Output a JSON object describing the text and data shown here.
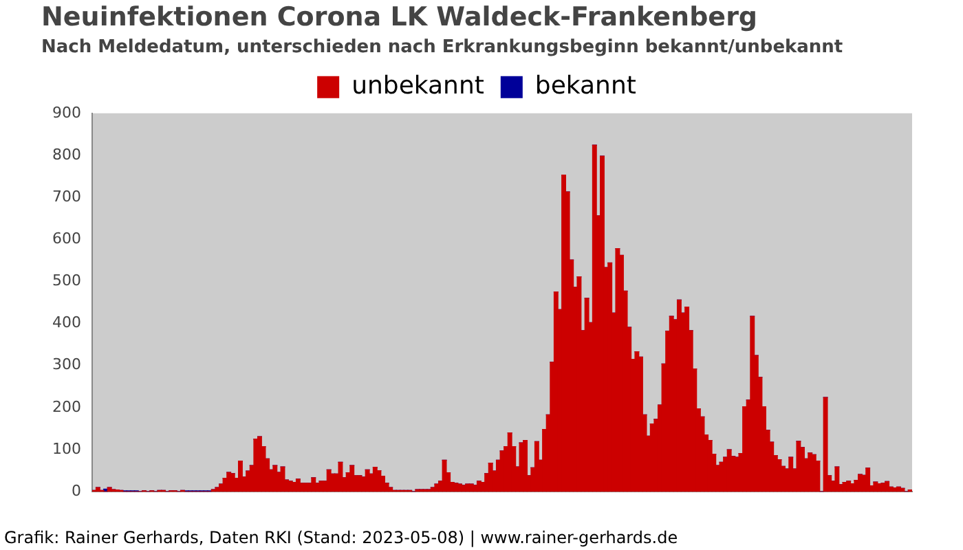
{
  "chart_data": {
    "type": "bar",
    "title": "Neuinfektionen Corona LK Waldeck-Frankenberg",
    "subtitle": "Nach Meldedatum, unterschieden nach Erkrankungsbeginn bekannt/unbekannt",
    "annotations": [
      "Grafik: Rainer Gerhards, Daten RKI (Stand: 2023-05-08) | www.rainer-gerhards.de"
    ],
    "categories": [
      null,
      null,
      null,
      null,
      null,
      null,
      null,
      null,
      null,
      null,
      null,
      null,
      null,
      null,
      null,
      null,
      null,
      null,
      null,
      null,
      null,
      null,
      null,
      null,
      null,
      null,
      null,
      null,
      null,
      null,
      null,
      null,
      null,
      null,
      null,
      null,
      null,
      null,
      null,
      null,
      null,
      null,
      null,
      null,
      null,
      null,
      null,
      null,
      null,
      null,
      null,
      null,
      null,
      null,
      null,
      null,
      null,
      null,
      null,
      null,
      null,
      null,
      null,
      null,
      null,
      null,
      null,
      null,
      null,
      null,
      null,
      null,
      null,
      null,
      null,
      null,
      null,
      null,
      null,
      null,
      null,
      null,
      null,
      null,
      null,
      null,
      null,
      null,
      null,
      null,
      null,
      null,
      null,
      null,
      null,
      null,
      null,
      null,
      null,
      null,
      null,
      null,
      null,
      null,
      null,
      null,
      null,
      null,
      null,
      null,
      null,
      null,
      null,
      null,
      null,
      null,
      null,
      null,
      null,
      null,
      null,
      null,
      null,
      null,
      null,
      null,
      null,
      null,
      null,
      null,
      null,
      null,
      null,
      null,
      null,
      null,
      null,
      null,
      null,
      null,
      null,
      null,
      null,
      null,
      null,
      null,
      null,
      null,
      null,
      null,
      null,
      null,
      null,
      null,
      null,
      null,
      null,
      null,
      null,
      null,
      null,
      null,
      null,
      null,
      null,
      null,
      null,
      null,
      null,
      null,
      null,
      null,
      null,
      null,
      null,
      null,
      null,
      null,
      null,
      null,
      null,
      null,
      null,
      null,
      null,
      null,
      null,
      null,
      null,
      null,
      null,
      null,
      null,
      null,
      null,
      null,
      null,
      null,
      null,
      null,
      null,
      null,
      null,
      null,
      null,
      null,
      null,
      null,
      null,
      null,
      null,
      null,
      null
    ],
    "series": [
      {
        "name": "unbekannt",
        "color": "#cc0000",
        "values": [
          3,
          10,
          3,
          0,
          10,
          5,
          4,
          3,
          0,
          0,
          0,
          0,
          0,
          2,
          0,
          2,
          0,
          3,
          3,
          0,
          2,
          2,
          0,
          3,
          0,
          0,
          0,
          0,
          0,
          0,
          0,
          5,
          10,
          18,
          32,
          46,
          43,
          32,
          73,
          35,
          49,
          62,
          125,
          131,
          107,
          78,
          52,
          62,
          46,
          59,
          28,
          25,
          22,
          30,
          20,
          20,
          20,
          33,
          20,
          25,
          25,
          52,
          42,
          42,
          70,
          33,
          45,
          62,
          38,
          38,
          35,
          52,
          42,
          58,
          50,
          37,
          20,
          10,
          3,
          3,
          3,
          3,
          3,
          0,
          5,
          5,
          5,
          5,
          10,
          18,
          25,
          75,
          45,
          22,
          20,
          18,
          15,
          18,
          18,
          15,
          25,
          22,
          43,
          68,
          49,
          75,
          97,
          107,
          140,
          107,
          59,
          116,
          122,
          38,
          57,
          119,
          75,
          148,
          183,
          308,
          475,
          433,
          753,
          713,
          551,
          486,
          511,
          383,
          460,
          402,
          824,
          656,
          798,
          533,
          544,
          425,
          578,
          562,
          477,
          391,
          315,
          333,
          320,
          183,
          132,
          161,
          172,
          206,
          304,
          382,
          417,
          409,
          456,
          425,
          439,
          383,
          292,
          197,
          178,
          135,
          122,
          89,
          62,
          70,
          82,
          100,
          84,
          82,
          91,
          202,
          218,
          417,
          324,
          272,
          202,
          146,
          118,
          86,
          76,
          60,
          54,
          82,
          54,
          120,
          105,
          78,
          92,
          88,
          73,
          0,
          224,
          38,
          25,
          59,
          17,
          22,
          25,
          19,
          27,
          41,
          39,
          56,
          14,
          23,
          19,
          20,
          24,
          11,
          9,
          11,
          8,
          0,
          4
        ]
      },
      {
        "name": "bekannt",
        "color": "#000099",
        "values": [
          0,
          0,
          0,
          6,
          0,
          0,
          0,
          0,
          2,
          2,
          2,
          2,
          0,
          0,
          0,
          0,
          0,
          0,
          0,
          0,
          0,
          0,
          0,
          0,
          2,
          2,
          2,
          2,
          2,
          2,
          2,
          0,
          0,
          0,
          0,
          0,
          0,
          0,
          0,
          0,
          0,
          0,
          0,
          0,
          0,
          0,
          0,
          0,
          0,
          0,
          0,
          0,
          0,
          0,
          0,
          0,
          0,
          0,
          0,
          0,
          0,
          0,
          0,
          0,
          0,
          0,
          0,
          0,
          0,
          0,
          0,
          0,
          0,
          0,
          0,
          0,
          0,
          0,
          0,
          0,
          0,
          0,
          0,
          0,
          0,
          0,
          0,
          0,
          0,
          0,
          0,
          0,
          0,
          0,
          0,
          0,
          0,
          0,
          0,
          0,
          0,
          0,
          0,
          0,
          0,
          0,
          0,
          0,
          0,
          0,
          0,
          0,
          0,
          0,
          0,
          0,
          0,
          0,
          0,
          0,
          0,
          0,
          0,
          0,
          0,
          0,
          0,
          0,
          0,
          0,
          0,
          0,
          0,
          0,
          0,
          0,
          0,
          0,
          0,
          0,
          0,
          0,
          0,
          0,
          0,
          0,
          0,
          0,
          0,
          0,
          0,
          0,
          0,
          0,
          0,
          0,
          0,
          0,
          0,
          0,
          0,
          0,
          0,
          0,
          0,
          0,
          0,
          0,
          0,
          0,
          0,
          0,
          0,
          0,
          0,
          0,
          0,
          0,
          0,
          0,
          0,
          0,
          0,
          0,
          0,
          0,
          0,
          0,
          0,
          0,
          0,
          0,
          0,
          0,
          0,
          0,
          0,
          0,
          0,
          0,
          0,
          0,
          0,
          0,
          0,
          0,
          0,
          0,
          0,
          0,
          0,
          0,
          0
        ]
      }
    ],
    "stacked": true,
    "ylim": [
      0,
      900
    ],
    "yticks": [
      0,
      100,
      200,
      300,
      400,
      500,
      600,
      700,
      800,
      900
    ],
    "legend": "top"
  }
}
